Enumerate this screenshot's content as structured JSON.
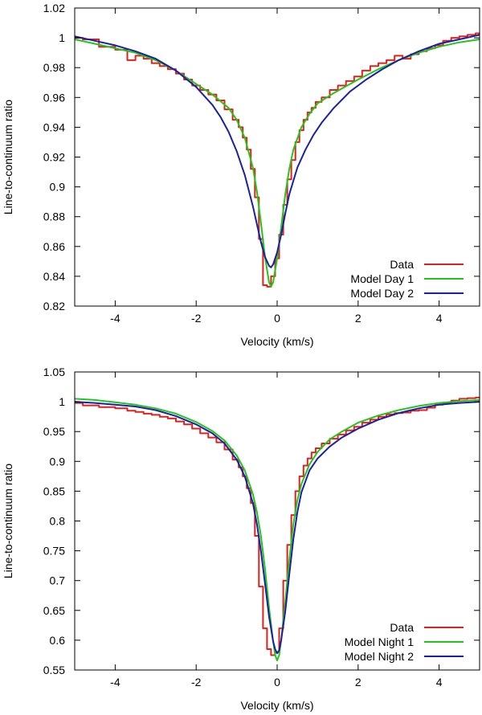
{
  "chart_data": [
    {
      "type": "line",
      "xlabel": "Velocity (km/s)",
      "ylabel": "Line-to-continuum ratio",
      "xlim": [
        -5,
        5
      ],
      "ylim": [
        0.82,
        1.02
      ],
      "xticks": [
        -4,
        -2,
        0,
        2,
        4
      ],
      "xtick_labels": [
        "-4",
        "-2",
        "0",
        "2",
        "4"
      ],
      "yticks": [
        0.82,
        0.84,
        0.86,
        0.88,
        0.9,
        0.92,
        0.94,
        0.96,
        0.98,
        1,
        1.02
      ],
      "ytick_labels": [
        "0.82",
        "0.84",
        "0.86",
        "0.88",
        "0.9",
        "0.92",
        "0.94",
        "0.96",
        "0.98",
        "1",
        "1.02"
      ],
      "legend": "bottom-right",
      "series": [
        {
          "name": "Data",
          "color": "#e0201b",
          "style": "step",
          "x": [
            -5.0,
            -4.6,
            -4.2,
            -3.8,
            -3.6,
            -3.4,
            -3.2,
            -3.0,
            -2.8,
            -2.6,
            -2.4,
            -2.2,
            -2.0,
            -1.8,
            -1.6,
            -1.4,
            -1.2,
            -1.0,
            -0.9,
            -0.8,
            -0.7,
            -0.6,
            -0.5,
            -0.4,
            -0.3,
            -0.2,
            -0.1,
            0.0,
            0.1,
            0.2,
            0.3,
            0.4,
            0.5,
            0.6,
            0.7,
            0.8,
            0.9,
            1.0,
            1.2,
            1.4,
            1.6,
            1.8,
            2.0,
            2.2,
            2.4,
            2.6,
            2.8,
            3.0,
            3.2,
            3.4,
            3.6,
            3.8,
            4.0,
            4.2,
            4.4,
            4.6,
            4.8,
            5.0
          ],
          "y": [
            1.0,
            0.999,
            0.994,
            0.992,
            0.985,
            0.988,
            0.986,
            0.983,
            0.981,
            0.979,
            0.976,
            0.972,
            0.968,
            0.965,
            0.962,
            0.958,
            0.952,
            0.945,
            0.94,
            0.933,
            0.925,
            0.912,
            0.893,
            0.865,
            0.834,
            0.833,
            0.84,
            0.852,
            0.868,
            0.888,
            0.905,
            0.918,
            0.93,
            0.938,
            0.945,
            0.95,
            0.953,
            0.957,
            0.96,
            0.965,
            0.968,
            0.971,
            0.974,
            0.978,
            0.981,
            0.983,
            0.985,
            0.988,
            0.986,
            0.989,
            0.991,
            0.993,
            0.995,
            0.998,
            1.0,
            1.001,
            1.002,
            1.003
          ]
        },
        {
          "name": "Model Day 1",
          "color": "#22c61a",
          "style": "line",
          "x": [
            -5.0,
            -4.5,
            -4.0,
            -3.5,
            -3.0,
            -2.5,
            -2.0,
            -1.6,
            -1.2,
            -1.0,
            -0.8,
            -0.6,
            -0.5,
            -0.4,
            -0.3,
            -0.2,
            -0.15,
            -0.1,
            0.0,
            0.1,
            0.2,
            0.3,
            0.4,
            0.6,
            0.8,
            1.0,
            1.4,
            2.0,
            2.5,
            3.0,
            3.5,
            4.0,
            4.5,
            5.0
          ],
          "y": [
            0.999,
            0.996,
            0.993,
            0.99,
            0.985,
            0.978,
            0.969,
            0.962,
            0.953,
            0.945,
            0.933,
            0.913,
            0.897,
            0.876,
            0.853,
            0.836,
            0.833,
            0.836,
            0.852,
            0.873,
            0.895,
            0.912,
            0.925,
            0.94,
            0.949,
            0.956,
            0.963,
            0.972,
            0.979,
            0.985,
            0.99,
            0.994,
            0.997,
            0.999
          ]
        },
        {
          "name": "Model Day 2",
          "color": "#1a1fa8",
          "style": "line",
          "x": [
            -5.0,
            -4.5,
            -4.0,
            -3.5,
            -3.0,
            -2.5,
            -2.0,
            -1.6,
            -1.4,
            -1.2,
            -1.0,
            -0.8,
            -0.6,
            -0.5,
            -0.4,
            -0.3,
            -0.2,
            -0.15,
            -0.1,
            0.0,
            0.1,
            0.2,
            0.3,
            0.5,
            0.7,
            0.9,
            1.1,
            1.4,
            1.8,
            2.2,
            2.6,
            3.0,
            3.5,
            4.0,
            4.5,
            5.0
          ],
          "y": [
            1.001,
            0.998,
            0.995,
            0.991,
            0.986,
            0.978,
            0.967,
            0.955,
            0.947,
            0.937,
            0.924,
            0.908,
            0.887,
            0.875,
            0.863,
            0.853,
            0.847,
            0.846,
            0.848,
            0.856,
            0.868,
            0.882,
            0.895,
            0.913,
            0.925,
            0.935,
            0.943,
            0.953,
            0.964,
            0.972,
            0.979,
            0.985,
            0.991,
            0.996,
            0.999,
            1.002
          ]
        }
      ]
    },
    {
      "type": "line",
      "xlabel": "Velocity (km/s)",
      "ylabel": "Line-to-continuum ratio",
      "xlim": [
        -5,
        5
      ],
      "ylim": [
        0.55,
        1.05
      ],
      "xticks": [
        -4,
        -2,
        0,
        2,
        4
      ],
      "xtick_labels": [
        "-4",
        "-2",
        "0",
        "2",
        "4"
      ],
      "yticks": [
        0.55,
        0.6,
        0.65,
        0.7,
        0.75,
        0.8,
        0.85,
        0.9,
        0.95,
        1,
        1.05
      ],
      "ytick_labels": [
        "0.55",
        "0.6",
        "0.65",
        "0.7",
        "0.75",
        "0.8",
        "0.85",
        "0.9",
        "0.95",
        "1",
        "1.05"
      ],
      "legend": "bottom-right",
      "series": [
        {
          "name": "Data",
          "color": "#e0201b",
          "style": "step",
          "x": [
            -5.0,
            -4.6,
            -4.2,
            -3.8,
            -3.6,
            -3.4,
            -3.2,
            -3.0,
            -2.8,
            -2.6,
            -2.4,
            -2.2,
            -2.0,
            -1.8,
            -1.6,
            -1.4,
            -1.2,
            -1.0,
            -0.9,
            -0.8,
            -0.7,
            -0.6,
            -0.5,
            -0.4,
            -0.3,
            -0.2,
            -0.1,
            0.0,
            0.1,
            0.2,
            0.3,
            0.4,
            0.5,
            0.6,
            0.7,
            0.8,
            0.9,
            1.0,
            1.2,
            1.4,
            1.6,
            1.8,
            2.0,
            2.2,
            2.4,
            2.6,
            2.8,
            3.0,
            3.2,
            3.4,
            3.6,
            3.8,
            4.0,
            4.2,
            4.4,
            4.6,
            4.8,
            5.0
          ],
          "y": [
            0.998,
            0.994,
            0.991,
            0.989,
            0.985,
            0.983,
            0.98,
            0.978,
            0.975,
            0.972,
            0.967,
            0.962,
            0.955,
            0.947,
            0.94,
            0.932,
            0.92,
            0.903,
            0.89,
            0.875,
            0.855,
            0.83,
            0.775,
            0.69,
            0.62,
            0.585,
            0.575,
            0.58,
            0.62,
            0.7,
            0.76,
            0.81,
            0.85,
            0.875,
            0.893,
            0.905,
            0.915,
            0.922,
            0.93,
            0.938,
            0.945,
            0.952,
            0.958,
            0.965,
            0.97,
            0.975,
            0.979,
            0.981,
            0.982,
            0.985,
            0.986,
            0.99,
            0.995,
            0.998,
            1.002,
            1.005,
            1.006,
            1.007
          ]
        },
        {
          "name": "Model Night 1",
          "color": "#22c61a",
          "style": "line",
          "x": [
            -5.0,
            -4.5,
            -4.0,
            -3.5,
            -3.0,
            -2.5,
            -2.0,
            -1.6,
            -1.3,
            -1.0,
            -0.8,
            -0.6,
            -0.5,
            -0.4,
            -0.3,
            -0.2,
            -0.1,
            -0.05,
            0.0,
            0.05,
            0.1,
            0.2,
            0.3,
            0.4,
            0.5,
            0.6,
            0.8,
            1.0,
            1.3,
            1.6,
            2.0,
            2.5,
            3.0,
            3.5,
            4.0,
            4.5,
            5.0
          ],
          "y": [
            1.005,
            1.003,
            0.999,
            0.995,
            0.989,
            0.98,
            0.966,
            0.951,
            0.935,
            0.91,
            0.885,
            0.845,
            0.815,
            0.775,
            0.72,
            0.655,
            0.598,
            0.575,
            0.566,
            0.575,
            0.6,
            0.665,
            0.735,
            0.795,
            0.835,
            0.862,
            0.895,
            0.916,
            0.937,
            0.95,
            0.965,
            0.977,
            0.986,
            0.993,
            0.998,
            1.001,
            1.003
          ]
        },
        {
          "name": "Model Night 2",
          "color": "#1a1fa8",
          "style": "line",
          "x": [
            -5.0,
            -4.5,
            -4.0,
            -3.5,
            -3.0,
            -2.5,
            -2.0,
            -1.6,
            -1.3,
            -1.0,
            -0.8,
            -0.6,
            -0.5,
            -0.4,
            -0.3,
            -0.2,
            -0.1,
            -0.05,
            0.0,
            0.05,
            0.1,
            0.2,
            0.3,
            0.4,
            0.5,
            0.6,
            0.8,
            1.0,
            1.3,
            1.6,
            2.0,
            2.5,
            3.0,
            3.5,
            4.0,
            4.5,
            5.0
          ],
          "y": [
            1.0,
            0.998,
            0.995,
            0.992,
            0.986,
            0.976,
            0.962,
            0.947,
            0.93,
            0.903,
            0.875,
            0.83,
            0.795,
            0.75,
            0.695,
            0.64,
            0.598,
            0.585,
            0.578,
            0.583,
            0.6,
            0.648,
            0.71,
            0.77,
            0.815,
            0.848,
            0.885,
            0.905,
            0.925,
            0.94,
            0.955,
            0.97,
            0.981,
            0.989,
            0.995,
            0.998,
            1.0
          ]
        }
      ]
    }
  ]
}
